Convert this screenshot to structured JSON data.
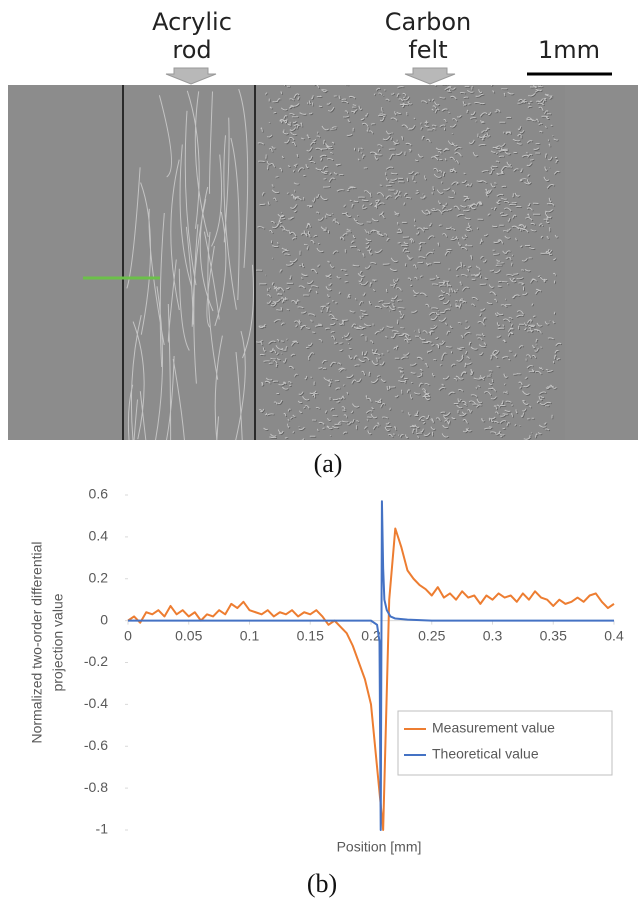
{
  "image_panel": {
    "labels": [
      [
        "Acrylic",
        "rod"
      ],
      [
        "Carbon",
        "felt"
      ]
    ],
    "scale_bar": "1mm",
    "caption": "(a)"
  },
  "chart_data": {
    "type": "line",
    "xlabel": "Position [mm]",
    "ylabel": [
      "Normalized two-order differential",
      "projection value"
    ],
    "xlim": [
      0,
      0.4
    ],
    "xticks": [
      0,
      0.05,
      0.1,
      0.15,
      0.2,
      0.25,
      0.3,
      0.35,
      0.4
    ],
    "ylim": [
      -1,
      0.6
    ],
    "yticks": [
      0.6,
      0.4,
      0.2,
      0,
      -0.2,
      -0.4,
      -0.6,
      -0.8,
      -1
    ],
    "legend": "lower right",
    "series": [
      {
        "name": "Measurement value",
        "color": "#ed7d31",
        "x": [
          0,
          0.005,
          0.01,
          0.015,
          0.02,
          0.025,
          0.03,
          0.035,
          0.04,
          0.045,
          0.05,
          0.055,
          0.06,
          0.065,
          0.07,
          0.075,
          0.08,
          0.085,
          0.09,
          0.095,
          0.1,
          0.105,
          0.11,
          0.115,
          0.12,
          0.125,
          0.13,
          0.135,
          0.14,
          0.145,
          0.15,
          0.155,
          0.16,
          0.165,
          0.17,
          0.175,
          0.18,
          0.185,
          0.19,
          0.195,
          0.2,
          0.205,
          0.21,
          0.215,
          0.22,
          0.225,
          0.23,
          0.235,
          0.24,
          0.245,
          0.25,
          0.255,
          0.26,
          0.265,
          0.27,
          0.275,
          0.28,
          0.285,
          0.29,
          0.295,
          0.3,
          0.305,
          0.31,
          0.315,
          0.32,
          0.325,
          0.33,
          0.335,
          0.34,
          0.345,
          0.35,
          0.355,
          0.36,
          0.365,
          0.37,
          0.375,
          0.38,
          0.385,
          0.39,
          0.395,
          0.4
        ],
        "values": [
          0,
          0.02,
          -0.01,
          0.04,
          0.03,
          0.05,
          0.02,
          0.07,
          0.03,
          0.05,
          0.02,
          0.04,
          0,
          0.03,
          0.02,
          0.05,
          0.03,
          0.08,
          0.06,
          0.09,
          0.05,
          0.04,
          0.03,
          0.05,
          0.02,
          0.04,
          0.03,
          0.05,
          0.02,
          0.04,
          0.03,
          0.05,
          0.02,
          -0.02,
          0,
          -0.03,
          -0.06,
          -0.12,
          -0.2,
          -0.28,
          -0.4,
          -0.7,
          -1,
          0.1,
          0.44,
          0.35,
          0.24,
          0.2,
          0.17,
          0.15,
          0.12,
          0.16,
          0.11,
          0.13,
          0.1,
          0.14,
          0.11,
          0.12,
          0.08,
          0.12,
          0.1,
          0.13,
          0.11,
          0.12,
          0.09,
          0.13,
          0.1,
          0.14,
          0.11,
          0.1,
          0.07,
          0.1,
          0.08,
          0.09,
          0.11,
          0.09,
          0.12,
          0.13,
          0.09,
          0.06,
          0.08
        ]
      },
      {
        "name": "Theoretical value",
        "color": "#4472c4",
        "x": [
          0,
          0.2,
          0.205,
          0.207,
          0.208,
          0.209,
          0.21,
          0.211,
          0.213,
          0.216,
          0.22,
          0.23,
          0.25,
          0.4
        ],
        "values": [
          0,
          0,
          -0.02,
          -0.1,
          -1,
          0.57,
          0.25,
          0.1,
          0.05,
          0.02,
          0.01,
          0.005,
          0,
          0
        ]
      }
    ]
  },
  "chart_caption": "(b)"
}
